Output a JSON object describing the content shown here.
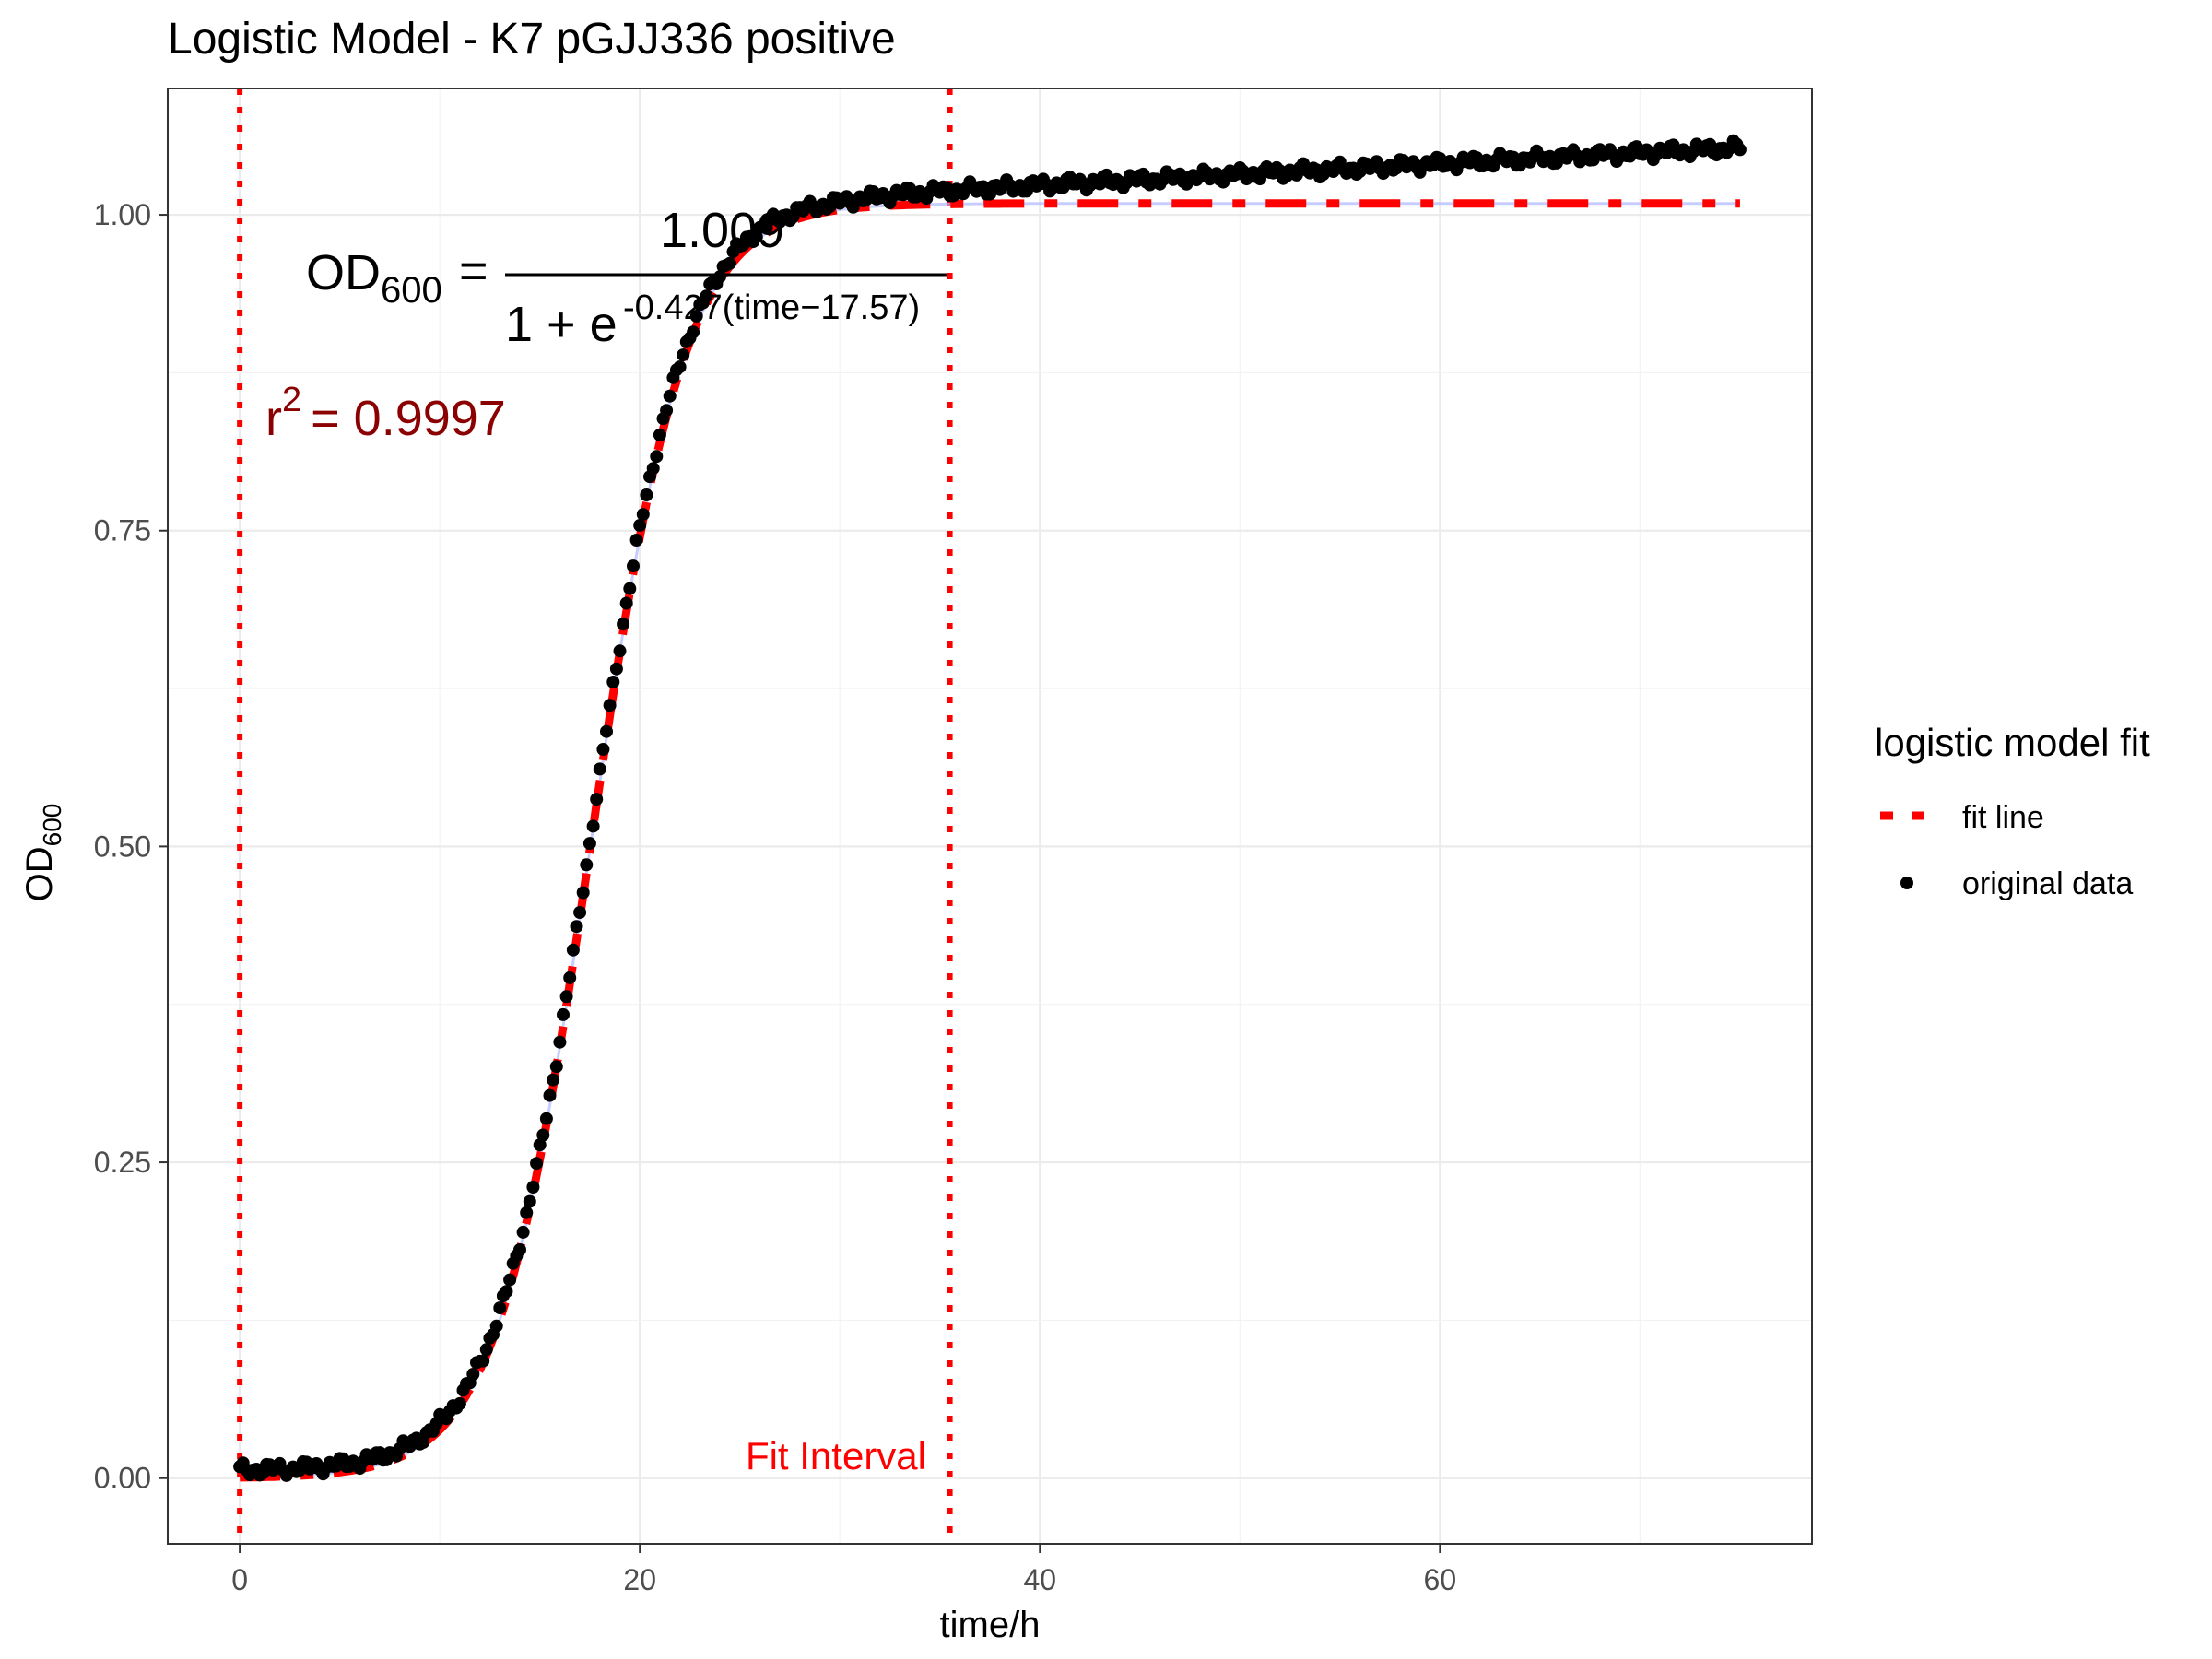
{
  "chart_data": {
    "type": "scatter",
    "title": "Logistic Model -  K7 pGJJ336 positive",
    "xlabel": "time/h",
    "ylabel": {
      "main": "OD",
      "sub": "600"
    },
    "xlim": [
      -3.6,
      78.6
    ],
    "ylim": [
      -0.052,
      1.1
    ],
    "xticks": [
      0,
      20,
      40,
      60
    ],
    "xtick_labels": [
      "0",
      "20",
      "40",
      "60"
    ],
    "yticks": [
      0,
      0.25,
      0.5,
      0.75,
      1.0
    ],
    "ytick_labels": [
      "0.00",
      "0.25",
      "0.50",
      "0.75",
      "1.00"
    ],
    "grid": true,
    "legend": {
      "title": "logistic model fit",
      "position": "right",
      "entries": [
        {
          "label": "fit line",
          "style": "dashed",
          "color": "#ff0000"
        },
        {
          "label": "original data",
          "style": "point",
          "color": "#000000"
        }
      ]
    },
    "model": {
      "equation_lhs": "OD",
      "equation_lhs_sub": "600",
      "numerator": "1.009",
      "denominator_base": "1 + e",
      "exponent": "-0.427(time−17.57)",
      "K": 1.009,
      "r": 0.427,
      "t0": 17.57,
      "r_squared_label": "r",
      "r_squared_exp": "2",
      "r_squared_value": "= 0.9997"
    },
    "fit_interval": {
      "label": "Fit Interval",
      "start": 0,
      "end": 35.5
    },
    "series": [
      {
        "name": "original data",
        "kind": "points",
        "color": "#000000",
        "x_range": [
          0,
          75
        ],
        "n_points": 451,
        "model": "logistic_with_drift",
        "drift_after": 30,
        "drift_slope": 0.00085
      },
      {
        "name": "fit line",
        "kind": "line",
        "color": "#ff0000",
        "x_range": [
          0,
          75
        ],
        "model": "logistic"
      }
    ],
    "colors": {
      "fit_line": "#ff0000",
      "interval_lines": "#ff0000",
      "data_points": "#000000",
      "fit_label": "#ff0000",
      "r_squared": "#8b0000",
      "fit_shadow": "#b0b8ff"
    }
  }
}
